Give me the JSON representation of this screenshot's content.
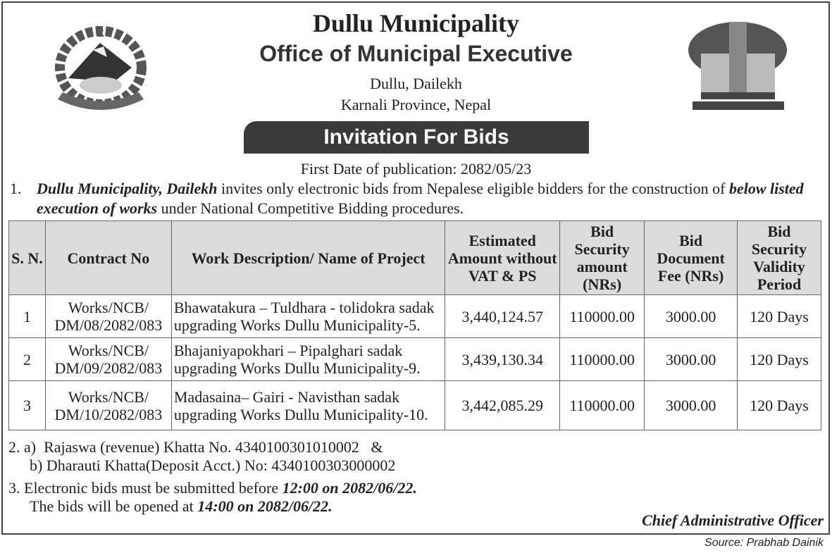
{
  "header": {
    "org": "Dullu Municipality",
    "office": "Office of Municipal Executive",
    "address1": "Dullu, Dailekh",
    "address2": "Karnali Province, Nepal"
  },
  "banner": "Invitation For Bids",
  "publication": "First Date of publication: 2082/05/23",
  "para1": {
    "num": "1.",
    "org": "Dullu Municipality, Dailekh",
    "text1": " invites only electronic bids from Nepalese eligible bidders for the construction of ",
    "em2": "below listed execution of works",
    "text2": " under National Competitive Bidding procedures."
  },
  "table": {
    "headers": [
      "S. N.",
      "Contract No",
      "Work Description/ Name of Project",
      "Estimated Amount without VAT & PS",
      "Bid Security amount (NRs)",
      "Bid Document Fee (NRs)",
      "Bid Security Validity Period"
    ],
    "rows": [
      [
        "1",
        "Works/NCB/ DM/08/2082/083",
        "Bhawatakura – Tuldhara - tolidokra sadak upgrading Works Dullu Municipality-5.",
        "3,440,124.57",
        "110000.00",
        "3000.00",
        "120 Days"
      ],
      [
        "2",
        "Works/NCB/ DM/09/2082/083",
        "Bhajaniyapokhari – Pipalghari  sadak upgrading Works Dullu Municipality-9.",
        "3,439,130.34",
        "110000.00",
        "3000.00",
        "120 Days"
      ],
      [
        "3",
        "Works/NCB/ DM/10/2082/083",
        "Madasaina– Gairi - Navisthan sadak upgrading Works Dullu Municipality-10.",
        "3,442,085.29",
        "110000.00",
        "3000.00",
        "120 Days"
      ]
    ]
  },
  "para2": {
    "a": "2. a)  Rajaswa (revenue) Khatta No. 4340100301010002   &",
    "b": "b) Dharauti Khatta(Deposit Acct.) No: 4340100303000002"
  },
  "para3": {
    "l1": "3. Electronic bids must be submitted before ",
    "l1em": "12:00 on 2082/06/22.",
    "l2": "The bids will be opened at ",
    "l2em": "14:00 on 2082/06/22."
  },
  "signature": "Chief Administrative Officer",
  "source": "Source: Prabhab Dainik",
  "logos": {
    "left": "nepal-emblem",
    "right": "municipality-logo"
  }
}
